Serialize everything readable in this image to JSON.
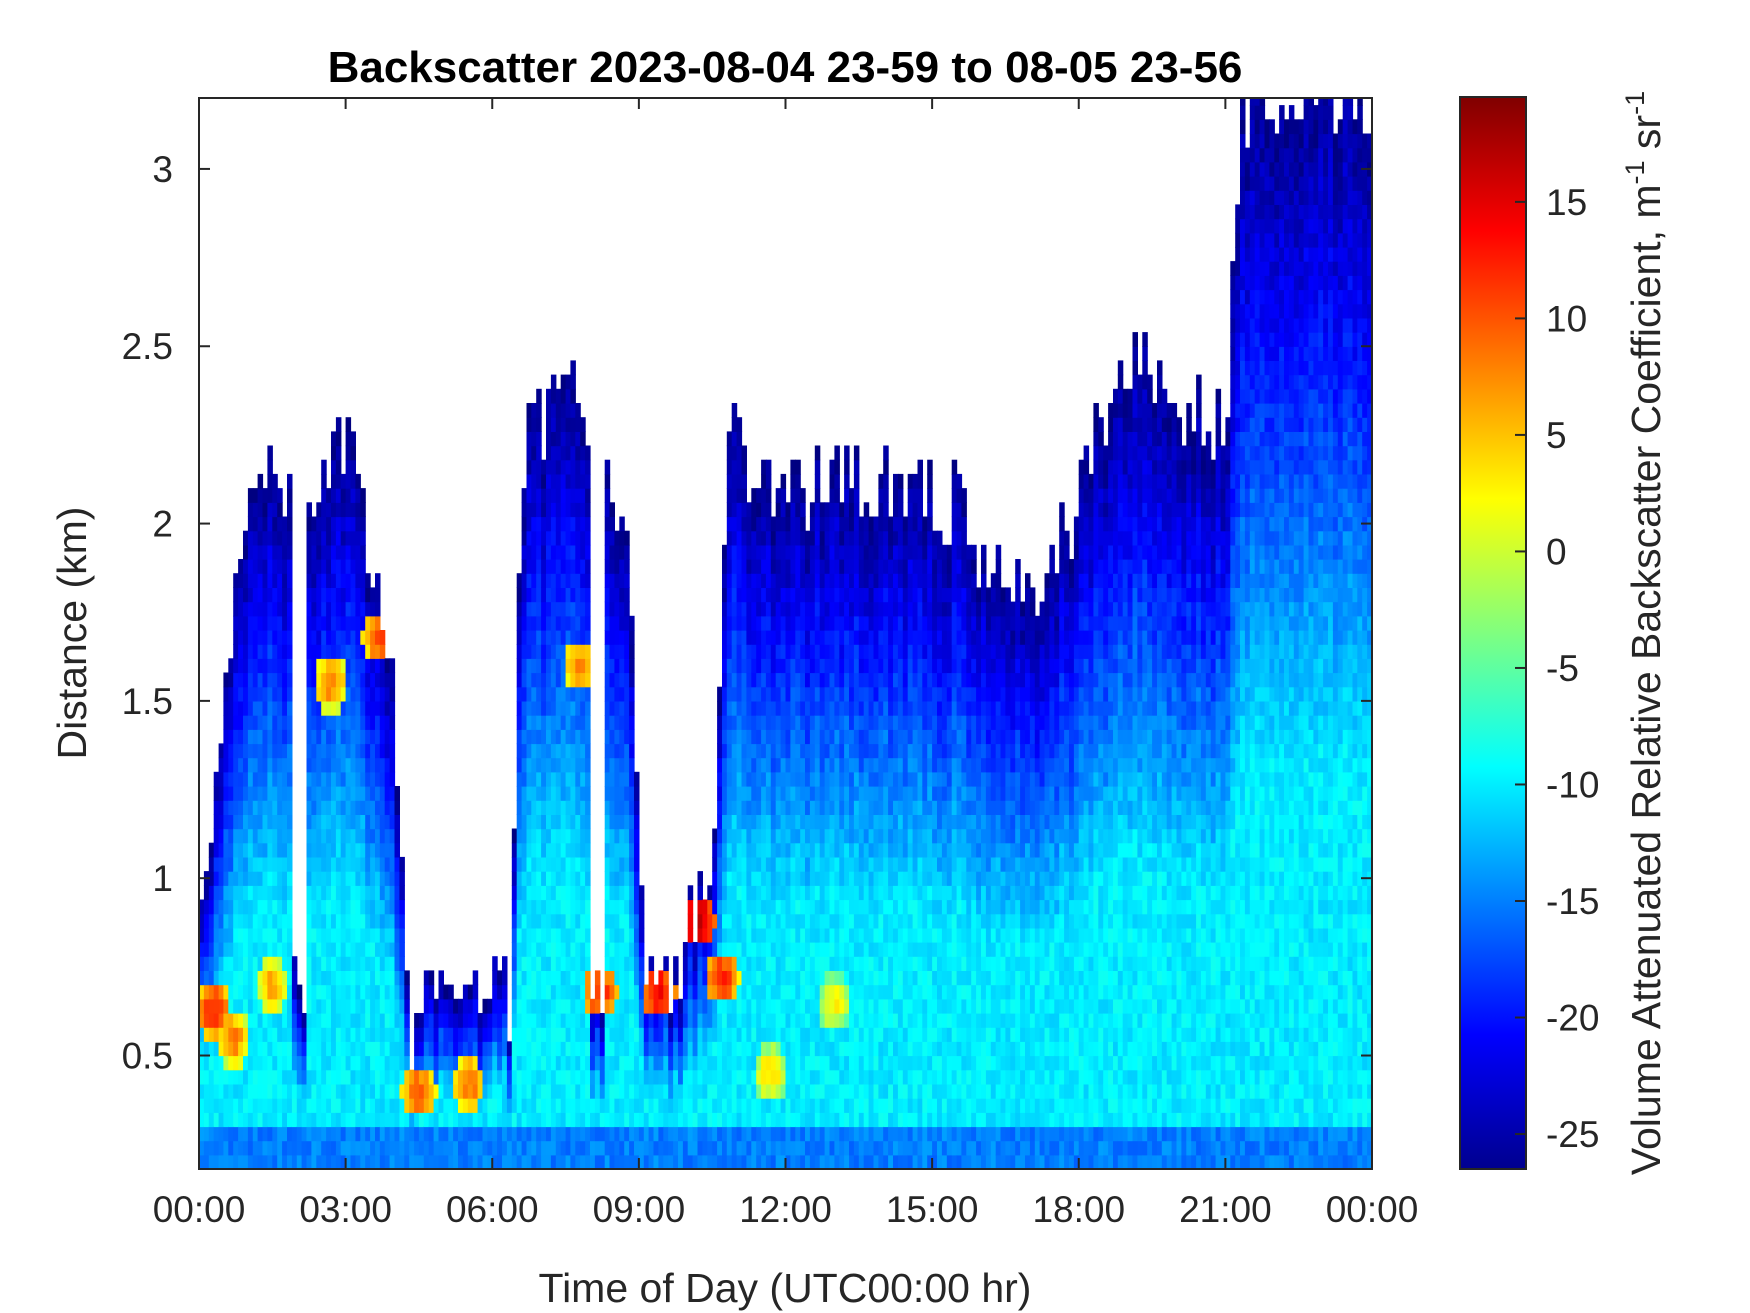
{
  "chart_data": {
    "type": "heatmap",
    "title": "Backscatter 2023-08-04 23-59 to 08-05 23-56",
    "xlabel": "Time of Day (UTC00:00 hr)",
    "ylabel": "Distance (km)",
    "x_ticks": [
      "00:00",
      "03:00",
      "06:00",
      "09:00",
      "12:00",
      "15:00",
      "18:00",
      "21:00",
      "00:00"
    ],
    "x_tick_hours": [
      0,
      3,
      6,
      9,
      12,
      15,
      18,
      21,
      24
    ],
    "xlim_hours": [
      0,
      24
    ],
    "y_ticks": [
      "0.5",
      "1",
      "1.5",
      "2",
      "2.5",
      "3"
    ],
    "y_tick_values": [
      0.5,
      1,
      1.5,
      2,
      2.5,
      3
    ],
    "ylim": [
      0.18,
      3.2
    ],
    "colorbar": {
      "label": "Volume Attenuated Relative Backscatter Coefficient, m",
      "label_sup1": "-1",
      "label_mid": " sr",
      "label_sup2": "-1",
      "ticks": [
        "15",
        "10",
        "5",
        "0",
        "-5",
        "-10",
        "-15",
        "-20",
        "-25"
      ],
      "tick_values": [
        15,
        10,
        5,
        0,
        -5,
        -10,
        -15,
        -20,
        -25
      ],
      "clim": [
        -26.5,
        19.5
      ],
      "colormap": "jet"
    },
    "grid": false,
    "signal_top_km_by_hour": [
      [
        0,
        0.85
      ],
      [
        0.9,
        2.05
      ],
      [
        1.5,
        2.15
      ],
      [
        2.3,
        2.1
      ],
      [
        3.0,
        2.2
      ],
      [
        3.9,
        1.7
      ],
      [
        4.3,
        0.5
      ],
      [
        6.4,
        0.65
      ],
      [
        6.6,
        2.2
      ],
      [
        7.6,
        2.45
      ],
      [
        8.2,
        2.1
      ],
      [
        8.8,
        2.0
      ],
      [
        9.0,
        0.9
      ],
      [
        10.5,
        0.95
      ],
      [
        10.8,
        2.25
      ],
      [
        12.0,
        2.1
      ],
      [
        14.0,
        2.1
      ],
      [
        15.5,
        2.05
      ],
      [
        16.5,
        1.85
      ],
      [
        17.0,
        1.75
      ],
      [
        18.0,
        2.05
      ],
      [
        19.0,
        2.5
      ],
      [
        20.0,
        2.3
      ],
      [
        21.0,
        2.3
      ],
      [
        21.4,
        3.2
      ],
      [
        24.0,
        3.2
      ]
    ],
    "gaps_hours": [
      [
        1.95,
        2.2
      ],
      [
        4.45,
        6.3
      ],
      [
        8.0,
        8.25
      ],
      [
        9.05,
        9.9
      ]
    ],
    "aerosol_layers": [
      {
        "hour": 0.3,
        "km": 0.63,
        "level": 12
      },
      {
        "hour": 0.7,
        "km": 0.55,
        "level": 8
      },
      {
        "hour": 1.5,
        "km": 0.7,
        "level": 6
      },
      {
        "hour": 2.7,
        "km": 1.55,
        "level": 8
      },
      {
        "hour": 3.7,
        "km": 1.68,
        "level": 10
      },
      {
        "hour": 4.5,
        "km": 0.4,
        "level": 10
      },
      {
        "hour": 5.5,
        "km": 0.42,
        "level": 9
      },
      {
        "hour": 7.8,
        "km": 1.6,
        "level": 8
      },
      {
        "hour": 8.2,
        "km": 0.68,
        "level": 12
      },
      {
        "hour": 9.4,
        "km": 0.68,
        "level": 14
      },
      {
        "hour": 10.2,
        "km": 0.88,
        "level": 17
      },
      {
        "hour": 10.7,
        "km": 0.72,
        "level": 12
      },
      {
        "hour": 11.7,
        "km": 0.45,
        "level": 4
      },
      {
        "hour": 13.0,
        "km": 0.65,
        "level": 3
      }
    ],
    "background_range": [
      -26,
      -10
    ]
  }
}
